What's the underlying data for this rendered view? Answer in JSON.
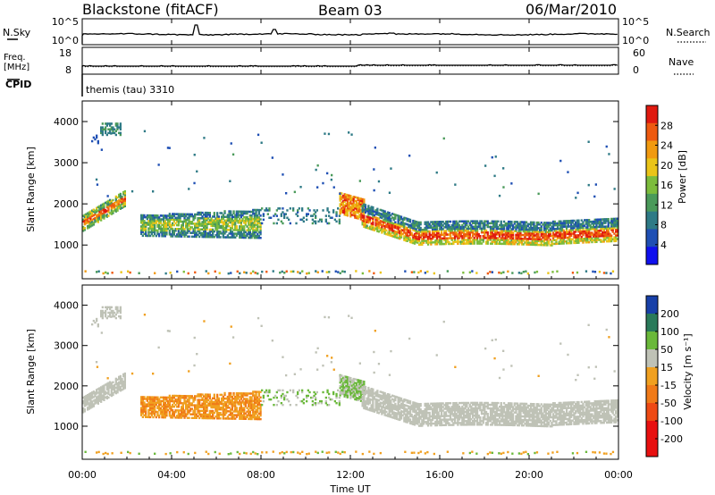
{
  "header": {
    "station": "Blackstone (fitACF)",
    "beam": "Beam 03",
    "date": "06/Mar/2010"
  },
  "noise_panel": {
    "left_label": "N.Sky",
    "left_ticks": [
      "10^5",
      "10^0"
    ],
    "right_label": "N.Search",
    "right_ticks": [
      "10^5",
      "10^0"
    ]
  },
  "freq_panel": {
    "left_label_line1": "Freq.",
    "left_label_line2": "[MHz]",
    "left_ticks": [
      "18",
      "8"
    ],
    "right_label": "Nave",
    "right_ticks": [
      "60",
      "0"
    ]
  },
  "cpid": {
    "label": "CPID",
    "program": "themis (tau) 3310"
  },
  "x_axis": {
    "label": "Time UT",
    "ticks": [
      "00:00",
      "04:00",
      "08:00",
      "12:00",
      "16:00",
      "20:00",
      "00:00"
    ],
    "range_hours": [
      0,
      24
    ]
  },
  "chart_data": [
    {
      "type": "heatmap",
      "name": "power",
      "ylabel": "Slant Range [km]",
      "ylim": [
        180,
        4500
      ],
      "yticks": [
        "1000",
        "2000",
        "3000",
        "4000"
      ],
      "colorbar": {
        "label": "Power [dB]",
        "range": [
          0,
          32
        ],
        "ticks": [
          "4",
          "8",
          "12",
          "16",
          "20",
          "24",
          "28"
        ],
        "colors": [
          "#1010ee",
          "#1f4fb4",
          "#2e7a86",
          "#4a9a5a",
          "#7cbc3c",
          "#eac418",
          "#f19a10",
          "#ee5a10",
          "#e01a10"
        ]
      }
    },
    {
      "type": "heatmap",
      "name": "velocity",
      "ylabel": "Slant Range [km]",
      "ylim": [
        180,
        4500
      ],
      "yticks": [
        "1000",
        "2000",
        "3000",
        "4000"
      ],
      "colorbar": {
        "label": "Velocity [m s⁻¹]",
        "ticks": [
          "200",
          "100",
          "50",
          "15",
          "-15",
          "-50",
          "-100",
          "-200"
        ],
        "colors": [
          "#1840a8",
          "#2a7a5a",
          "#6ab83a",
          "#bfc2b6",
          "#f0a020",
          "#f07a18",
          "#ee4a14",
          "#e81010"
        ]
      }
    }
  ]
}
